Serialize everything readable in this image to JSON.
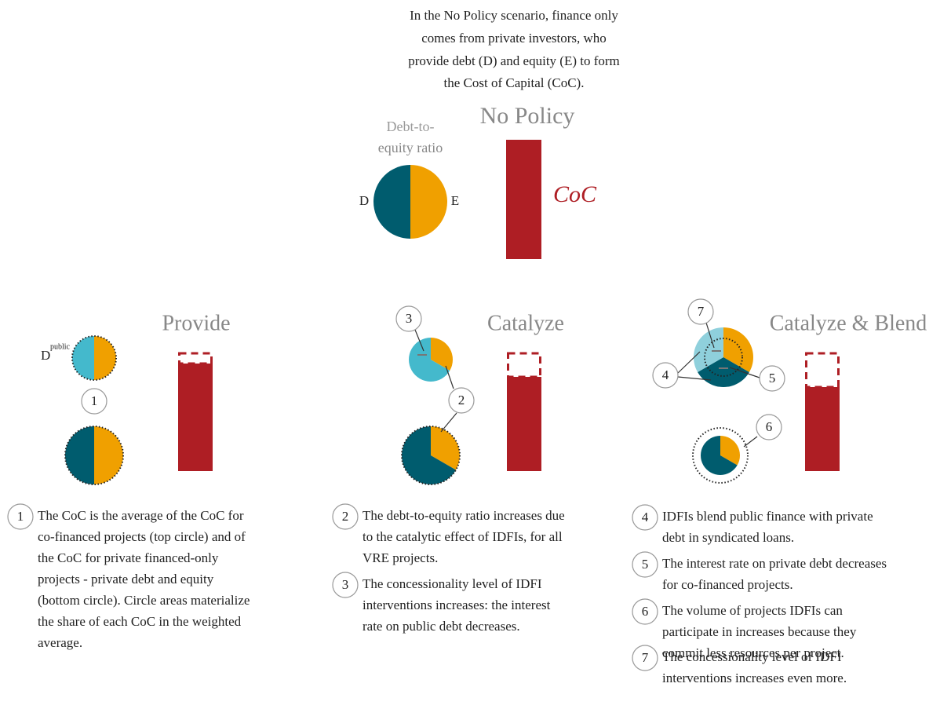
{
  "intro": {
    "lines": [
      "In the No Policy scenario, finance only",
      "comes from private investors, who",
      "provide debt (D) and equity (E) to form",
      "the Cost of Capital (CoC)."
    ]
  },
  "no_policy": {
    "title": "No Policy",
    "ratio_label": [
      "Debt-to-",
      "equity ratio"
    ],
    "d": "D",
    "e": "E",
    "coc": "CoC"
  },
  "panels": [
    {
      "title": "Provide",
      "d_label": "D",
      "d_sup": "public",
      "callouts": [
        "1"
      ]
    },
    {
      "title": "Catalyze",
      "callouts": [
        "3",
        "2"
      ]
    },
    {
      "title": "Catalyze & Blend",
      "callouts": [
        "7",
        "4",
        "5",
        "6"
      ]
    }
  ],
  "notes": [
    {
      "num": "1",
      "lines": [
        "The CoC is the average of the CoC for",
        "co-financed projects (top circle) and of",
        "the CoC for private financed-only",
        "projects - private debt and equity",
        "(bottom circle). Circle areas materialize",
        "the share of each CoC in the weighted",
        "average."
      ]
    },
    {
      "num": "2",
      "lines": [
        "The debt-to-equity ratio increases due",
        "to the catalytic effect of IDFIs, for all",
        "VRE projects."
      ]
    },
    {
      "num": "3",
      "lines": [
        "The concessionality level of IDFI",
        "interventions increases: the interest",
        "rate on public debt decreases."
      ]
    },
    {
      "num": "4",
      "lines": [
        "IDFIs blend public finance with private",
        "debt in syndicated loans."
      ]
    },
    {
      "num": "5",
      "lines": [
        "The interest rate on private debt decreases",
        "for co-financed projects."
      ]
    },
    {
      "num": "6",
      "lines": [
        "The volume of projects IDFIs can",
        "participate in increases because they",
        "commit less resources per project."
      ]
    },
    {
      "num": "7",
      "lines": [
        "The concessionality level of IDFI",
        "interventions increases even more."
      ]
    }
  ]
}
